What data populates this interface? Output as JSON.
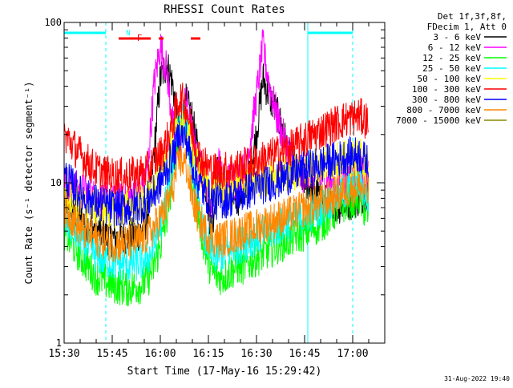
{
  "chart_data": {
    "type": "line",
    "title": "RHESSI Count Rates",
    "xlabel": "Start Time (17-May-16 15:29:42)",
    "ylabel": "Count Rate (s⁻¹ detector segment⁻¹)",
    "yscale": "log",
    "ylim": [
      1,
      100
    ],
    "xlim_minutes": [
      0,
      100
    ],
    "x_ticks": [
      {
        "m": 0,
        "label": "15:30"
      },
      {
        "m": 15,
        "label": "15:45"
      },
      {
        "m": 30,
        "label": "16:00"
      },
      {
        "m": 45,
        "label": "16:15"
      },
      {
        "m": 60,
        "label": "16:30"
      },
      {
        "m": 75,
        "label": "16:45"
      },
      {
        "m": 90,
        "label": "17:00"
      }
    ],
    "y_ticks": [
      {
        "v": 1,
        "label": "1"
      },
      {
        "v": 10,
        "label": "10"
      },
      {
        "v": 100,
        "label": "100"
      }
    ],
    "legend_header": [
      "Det 1f,3f,8f,",
      "FDecim 1, Att 0"
    ],
    "legend_placement": "right",
    "series": [
      {
        "name": "3 - 6 keV",
        "color": "#000000",
        "x": [
          0,
          5,
          10,
          15,
          20,
          24,
          26,
          28,
          30,
          32,
          34,
          36,
          38,
          40,
          42,
          44,
          46,
          48,
          50,
          52,
          54,
          56,
          58,
          60,
          62,
          64,
          66,
          68,
          70,
          72,
          74,
          76,
          80,
          84,
          88,
          92,
          95
        ],
        "y": [
          8,
          6,
          5,
          4.5,
          4.5,
          5,
          6,
          15,
          45,
          55,
          40,
          18,
          32,
          25,
          14,
          10,
          5,
          12,
          8,
          10,
          8,
          9,
          12,
          20,
          45,
          35,
          28,
          22,
          15,
          12,
          11,
          10,
          8,
          7,
          7.5,
          8,
          9
        ]
      },
      {
        "name": "6 - 12 keV",
        "color": "#ff00ff",
        "x": [
          0,
          5,
          10,
          15,
          20,
          24,
          26,
          28,
          30,
          32,
          34,
          36,
          38,
          40,
          42,
          44,
          46,
          48,
          50,
          52,
          54,
          56,
          58,
          60,
          62,
          64,
          66,
          68,
          70,
          72,
          74,
          76,
          80,
          84,
          88,
          92,
          95
        ],
        "y": [
          10,
          9,
          8,
          7.5,
          8,
          9,
          12,
          40,
          72,
          50,
          22,
          16,
          34,
          20,
          13,
          11,
          7,
          14,
          9,
          11,
          10,
          12,
          18,
          35,
          72,
          40,
          28,
          20,
          16,
          12,
          11,
          12,
          11,
          10,
          11,
          12,
          11
        ]
      },
      {
        "name": "12 - 25 keV",
        "color": "#00ff00",
        "x": [
          0,
          5,
          10,
          15,
          20,
          24,
          26,
          28,
          30,
          32,
          34,
          36,
          38,
          40,
          42,
          44,
          46,
          48,
          50,
          52,
          54,
          56,
          58,
          60,
          62,
          64,
          66,
          68,
          70,
          72,
          74,
          76,
          80,
          84,
          88,
          92,
          95
        ],
        "y": [
          5,
          3.5,
          2.6,
          2.3,
          2.2,
          2.3,
          2.5,
          3,
          4,
          6,
          12,
          24,
          26,
          10,
          6,
          3.8,
          2.8,
          2.6,
          2.6,
          2.8,
          3,
          3,
          3.2,
          3.4,
          3.6,
          3.8,
          4,
          4.2,
          4.4,
          4.6,
          4.8,
          5,
          5.5,
          6.5,
          7.5,
          8,
          6
        ]
      },
      {
        "name": "25 - 50 keV",
        "color": "#00ffff",
        "x": [
          0,
          5,
          10,
          15,
          20,
          24,
          26,
          28,
          30,
          32,
          34,
          36,
          38,
          40,
          42,
          44,
          46,
          48,
          50,
          52,
          54,
          56,
          58,
          60,
          62,
          64,
          66,
          68,
          70,
          72,
          74,
          76,
          80,
          84,
          88,
          92,
          95
        ],
        "y": [
          6,
          4.5,
          3.5,
          3.2,
          3.1,
          3.2,
          3.4,
          4,
          5.5,
          8,
          14,
          26,
          24,
          12,
          7,
          4.5,
          3.6,
          3.5,
          3.6,
          3.8,
          4,
          4.2,
          4.4,
          4.6,
          4.8,
          5,
          5.2,
          5.4,
          5.6,
          5.8,
          6,
          6.3,
          7,
          8,
          9,
          10,
          8
        ]
      },
      {
        "name": "50 - 100 keV",
        "color": "#ffff00",
        "x": [
          0,
          5,
          10,
          15,
          20,
          24,
          26,
          28,
          30,
          32,
          34,
          36,
          38,
          40,
          42,
          44,
          46,
          48,
          50,
          52,
          54,
          56,
          58,
          60,
          62,
          64,
          66,
          68,
          70,
          72,
          74,
          76,
          80,
          84,
          88,
          92,
          95
        ],
        "y": [
          9,
          7.5,
          7,
          6.8,
          7,
          7.5,
          8,
          9,
          11,
          14,
          18,
          24,
          22,
          16,
          12,
          10,
          9,
          8.8,
          9,
          9.2,
          9.5,
          9.8,
          10,
          10.2,
          10.5,
          10.8,
          11,
          11.2,
          11.5,
          11.8,
          12,
          12.5,
          13,
          13.5,
          14,
          14.5,
          13
        ]
      },
      {
        "name": "100 - 300 keV",
        "color": "#ff0000",
        "x": [
          0,
          5,
          10,
          15,
          20,
          24,
          26,
          28,
          30,
          32,
          34,
          36,
          38,
          40,
          42,
          44,
          46,
          48,
          50,
          52,
          54,
          56,
          58,
          60,
          62,
          64,
          66,
          68,
          70,
          72,
          74,
          76,
          80,
          84,
          88,
          92,
          95
        ],
        "y": [
          20,
          15,
          12,
          11,
          11,
          11.5,
          12,
          13.5,
          15,
          18,
          24,
          34,
          30,
          20,
          15,
          13,
          12,
          11.8,
          12,
          12.2,
          12.5,
          12.8,
          13,
          13.5,
          14,
          14.5,
          15,
          15.5,
          16,
          17,
          18,
          19,
          21,
          23,
          25,
          26,
          24
        ]
      },
      {
        "name": "300 - 800 keV",
        "color": "#0000ff",
        "x": [
          0,
          5,
          10,
          15,
          20,
          24,
          26,
          28,
          30,
          32,
          34,
          36,
          38,
          40,
          42,
          44,
          46,
          48,
          50,
          52,
          54,
          56,
          58,
          60,
          62,
          64,
          66,
          68,
          70,
          72,
          74,
          76,
          80,
          84,
          88,
          92,
          95
        ],
        "y": [
          11,
          8.5,
          7.5,
          7,
          7,
          7.3,
          7.8,
          8.5,
          10,
          12,
          15,
          20,
          19,
          13,
          10,
          8.5,
          7.8,
          7.6,
          7.8,
          8,
          8.3,
          8.6,
          9,
          9.3,
          9.6,
          10,
          10.3,
          10.6,
          11,
          11.4,
          11.8,
          12.2,
          13,
          13.8,
          14.5,
          15,
          13
        ]
      },
      {
        "name": "800 - 7000 keV",
        "color": "#ff8800",
        "x": [
          0,
          5,
          10,
          15,
          20,
          24,
          26,
          28,
          30,
          32,
          34,
          36,
          38,
          40,
          42,
          44,
          46,
          48,
          50,
          52,
          54,
          56,
          58,
          60,
          62,
          64,
          66,
          68,
          70,
          72,
          74,
          76,
          80,
          84,
          88,
          92,
          95
        ],
        "y": [
          7,
          5.2,
          4.5,
          4.2,
          4.2,
          4.4,
          4.7,
          5.2,
          6,
          7.2,
          9.5,
          14,
          13,
          8,
          6,
          5,
          4.5,
          4.4,
          4.5,
          4.6,
          4.8,
          5,
          5.1,
          5.3,
          5.5,
          5.7,
          5.9,
          6.1,
          6.3,
          6.5,
          6.8,
          7,
          7.5,
          8.2,
          9,
          9.5,
          8.5
        ]
      },
      {
        "name": "7000 - 15000 keV",
        "color": "#888800",
        "x": [],
        "y": []
      }
    ],
    "annotations": [
      {
        "label": "N",
        "color": "#00ffff",
        "m": 13
      },
      {
        "label": "F",
        "color": "#ff0000",
        "m": 15.5
      }
    ],
    "night_bars": [
      [
        0,
        13
      ],
      [
        76,
        90
      ]
    ],
    "flare_bars": [
      [
        17,
        27
      ],
      [
        29.5,
        31
      ],
      [
        39.5,
        42.5
      ]
    ],
    "timestamp": "31-Aug-2022 19:40"
  }
}
